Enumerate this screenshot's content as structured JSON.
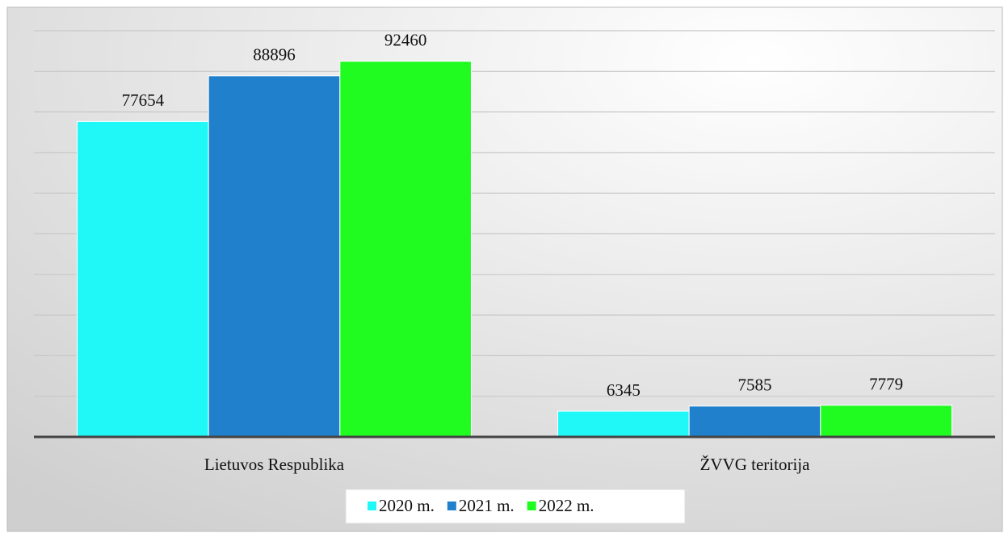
{
  "chart_data": {
    "type": "bar",
    "categories": [
      "Lietuvos Respublika",
      "ŽVVG teritorija"
    ],
    "series": [
      {
        "name": "2020 m.",
        "color": "#20f8f8",
        "values": [
          77654,
          6345
        ]
      },
      {
        "name": "2021 m.",
        "color": "#2180cc",
        "values": [
          88896,
          7585
        ]
      },
      {
        "name": "2022 m.",
        "color": "#20fc20",
        "values": [
          92460,
          7779
        ]
      }
    ],
    "ylim": [
      0,
      100000
    ],
    "yticks": [
      0,
      10000,
      20000,
      30000,
      40000,
      50000,
      60000,
      70000,
      80000,
      90000,
      100000
    ],
    "grid": true,
    "legend": "bottom"
  }
}
